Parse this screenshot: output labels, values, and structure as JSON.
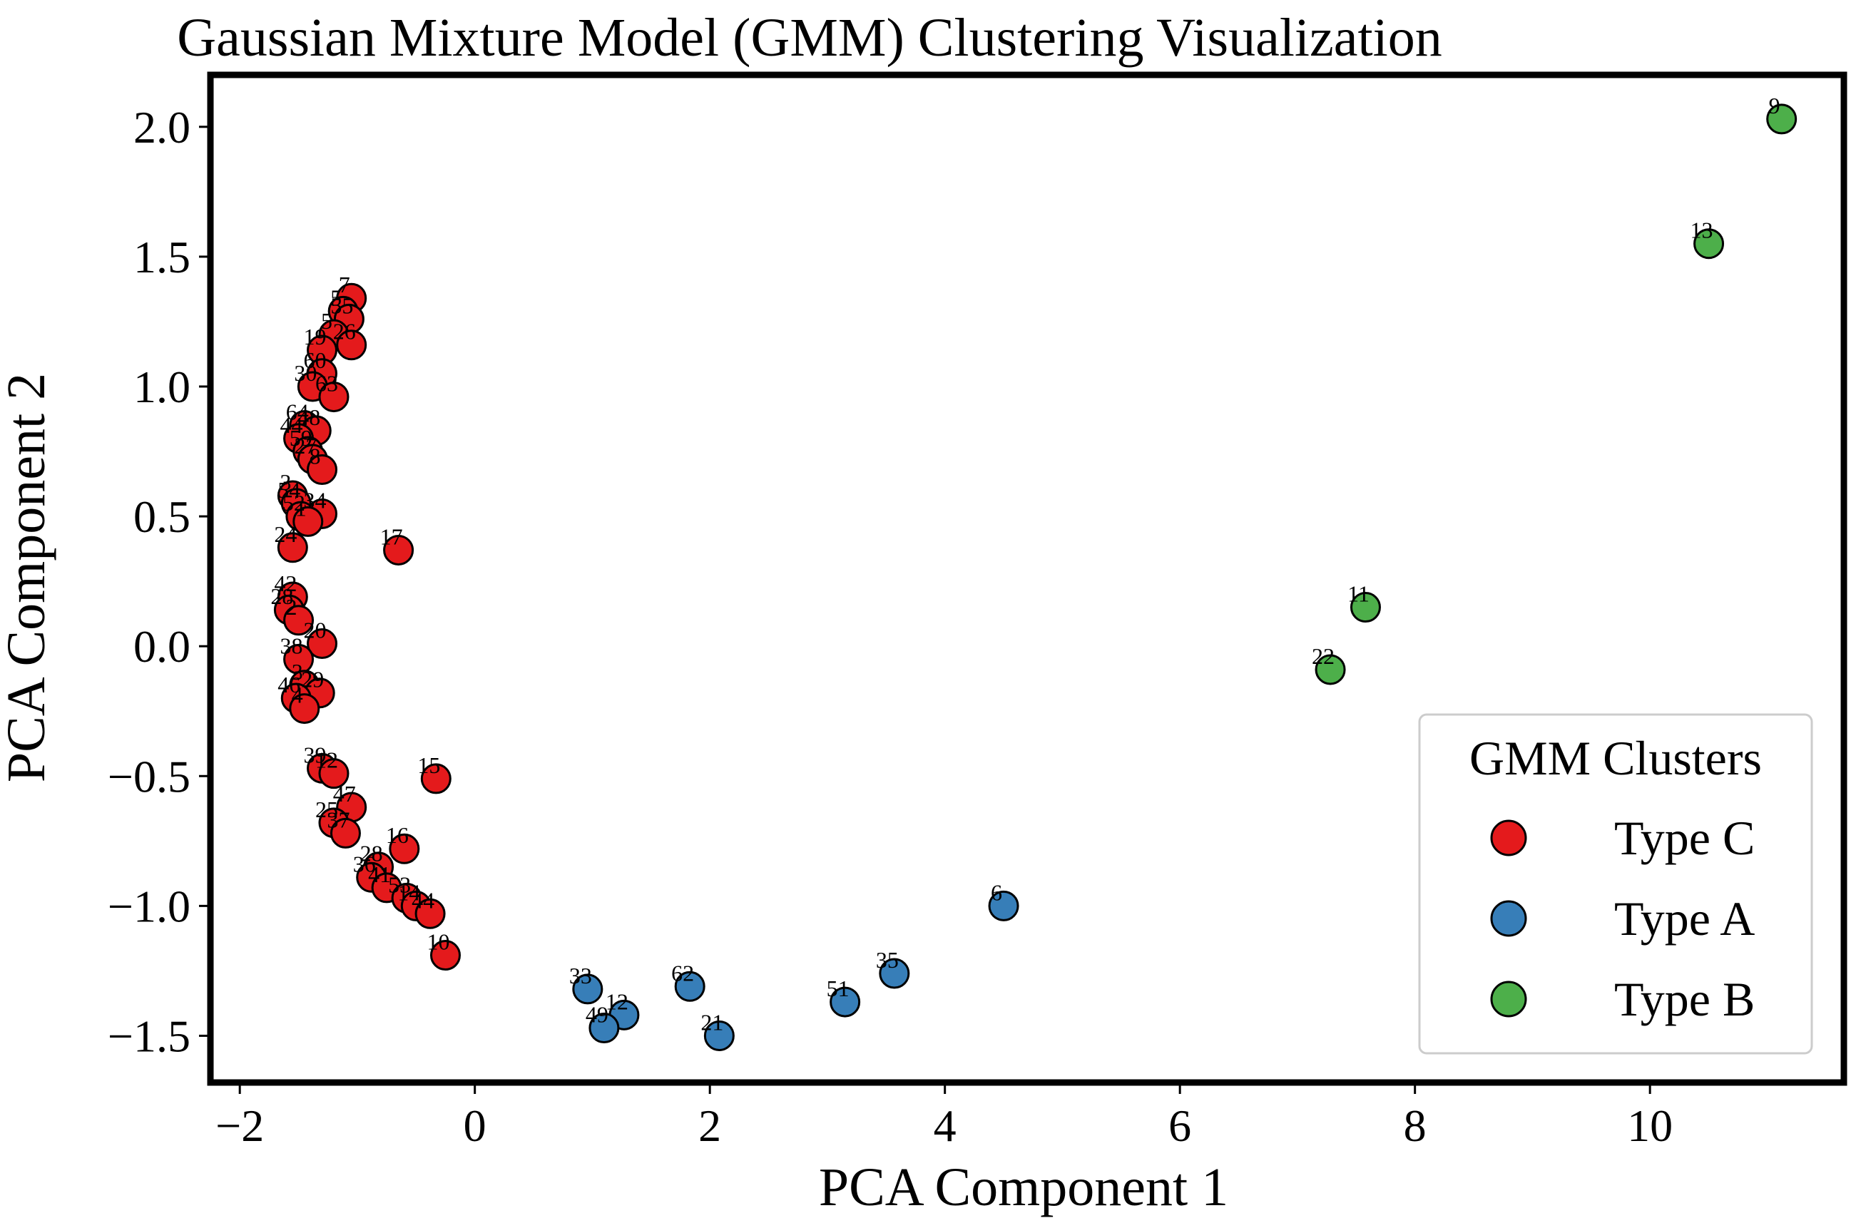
{
  "chart_data": {
    "type": "scatter",
    "title": "Gaussian Mixture Model (GMM) Clustering Visualization",
    "xlabel": "PCA Component 1",
    "ylabel": "PCA Component 2",
    "xlim": [
      -2.25,
      11.65
    ],
    "ylim": [
      -1.68,
      2.2
    ],
    "xticks": [
      -2,
      0,
      2,
      4,
      6,
      8,
      10
    ],
    "yticks": [
      -1.5,
      -1.0,
      -0.5,
      0.0,
      0.5,
      1.0,
      1.5,
      2.0
    ],
    "xtick_labels": [
      "−2",
      "0",
      "2",
      "4",
      "6",
      "8",
      "10"
    ],
    "ytick_labels": [
      "−1.5",
      "−1.0",
      "−0.5",
      "0.0",
      "0.5",
      "1.0",
      "1.5",
      "2.0"
    ],
    "grid": false,
    "legend": {
      "title": "GMM Clusters",
      "position": "bottom-right",
      "entries": [
        {
          "label": "Type C",
          "color": "#e41a1c"
        },
        {
          "label": "Type A",
          "color": "#377eb8"
        },
        {
          "label": "Type B",
          "color": "#4daf4a"
        }
      ]
    },
    "series": [
      {
        "name": "Type C",
        "color": "#e41a1c",
        "points": [
          {
            "x": -1.05,
            "y": 1.34,
            "label": "7"
          },
          {
            "x": -1.12,
            "y": 1.29,
            "label": "5"
          },
          {
            "x": -1.07,
            "y": 1.26,
            "label": "55"
          },
          {
            "x": -1.2,
            "y": 1.2,
            "label": "5"
          },
          {
            "x": -1.3,
            "y": 1.14,
            "label": "19"
          },
          {
            "x": -1.05,
            "y": 1.16,
            "label": "26"
          },
          {
            "x": -1.3,
            "y": 1.05,
            "label": "60"
          },
          {
            "x": -1.38,
            "y": 1.0,
            "label": "30"
          },
          {
            "x": -1.2,
            "y": 0.96,
            "label": "63"
          },
          {
            "x": -1.45,
            "y": 0.85,
            "label": "64"
          },
          {
            "x": -1.35,
            "y": 0.83,
            "label": "48"
          },
          {
            "x": -1.5,
            "y": 0.8,
            "label": "44"
          },
          {
            "x": -1.42,
            "y": 0.75,
            "label": "59"
          },
          {
            "x": -1.38,
            "y": 0.72,
            "label": "27"
          },
          {
            "x": -1.3,
            "y": 0.68,
            "label": "8"
          },
          {
            "x": -1.55,
            "y": 0.58,
            "label": "3"
          },
          {
            "x": -1.52,
            "y": 0.55,
            "label": "54"
          },
          {
            "x": -1.48,
            "y": 0.5,
            "label": "52"
          },
          {
            "x": -1.3,
            "y": 0.51,
            "label": "34"
          },
          {
            "x": -1.42,
            "y": 0.48,
            "label": "1"
          },
          {
            "x": -1.55,
            "y": 0.38,
            "label": "24"
          },
          {
            "x": -0.65,
            "y": 0.37,
            "label": "17"
          },
          {
            "x": -1.55,
            "y": 0.19,
            "label": "42"
          },
          {
            "x": -1.58,
            "y": 0.14,
            "label": "28"
          },
          {
            "x": -1.5,
            "y": 0.1,
            "label": "2"
          },
          {
            "x": -1.3,
            "y": 0.01,
            "label": "20"
          },
          {
            "x": -1.5,
            "y": -0.05,
            "label": "38"
          },
          {
            "x": -1.45,
            "y": -0.15,
            "label": "3"
          },
          {
            "x": -1.32,
            "y": -0.18,
            "label": "29"
          },
          {
            "x": -1.52,
            "y": -0.2,
            "label": "46"
          },
          {
            "x": -1.45,
            "y": -0.24,
            "label": "4"
          },
          {
            "x": -1.3,
            "y": -0.47,
            "label": "39"
          },
          {
            "x": -1.2,
            "y": -0.49,
            "label": "12"
          },
          {
            "x": -0.33,
            "y": -0.51,
            "label": "15"
          },
          {
            "x": -1.05,
            "y": -0.62,
            "label": "47"
          },
          {
            "x": -1.2,
            "y": -0.68,
            "label": "25"
          },
          {
            "x": -1.1,
            "y": -0.72,
            "label": "37"
          },
          {
            "x": -0.6,
            "y": -0.78,
            "label": "16"
          },
          {
            "x": -0.82,
            "y": -0.85,
            "label": "28"
          },
          {
            "x": -0.88,
            "y": -0.89,
            "label": "36"
          },
          {
            "x": -0.75,
            "y": -0.93,
            "label": "41"
          },
          {
            "x": -0.58,
            "y": -0.97,
            "label": "53"
          },
          {
            "x": -0.5,
            "y": -1.0,
            "label": "14"
          },
          {
            "x": -0.38,
            "y": -1.03,
            "label": "44"
          },
          {
            "x": -0.25,
            "y": -1.19,
            "label": "10"
          }
        ]
      },
      {
        "name": "Type A",
        "color": "#377eb8",
        "points": [
          {
            "x": 4.5,
            "y": -1.0,
            "label": "6"
          },
          {
            "x": 3.57,
            "y": -1.26,
            "label": "35"
          },
          {
            "x": 3.15,
            "y": -1.37,
            "label": "51"
          },
          {
            "x": 1.83,
            "y": -1.31,
            "label": "62"
          },
          {
            "x": 0.96,
            "y": -1.32,
            "label": "33"
          },
          {
            "x": 1.27,
            "y": -1.42,
            "label": "12"
          },
          {
            "x": 1.1,
            "y": -1.47,
            "label": "49"
          },
          {
            "x": 2.08,
            "y": -1.5,
            "label": "21"
          }
        ]
      },
      {
        "name": "Type B",
        "color": "#4daf4a",
        "points": [
          {
            "x": 11.12,
            "y": 2.03,
            "label": "9"
          },
          {
            "x": 10.5,
            "y": 1.55,
            "label": "13"
          },
          {
            "x": 7.58,
            "y": 0.15,
            "label": "11"
          },
          {
            "x": 7.28,
            "y": -0.09,
            "label": "22"
          }
        ]
      }
    ]
  }
}
